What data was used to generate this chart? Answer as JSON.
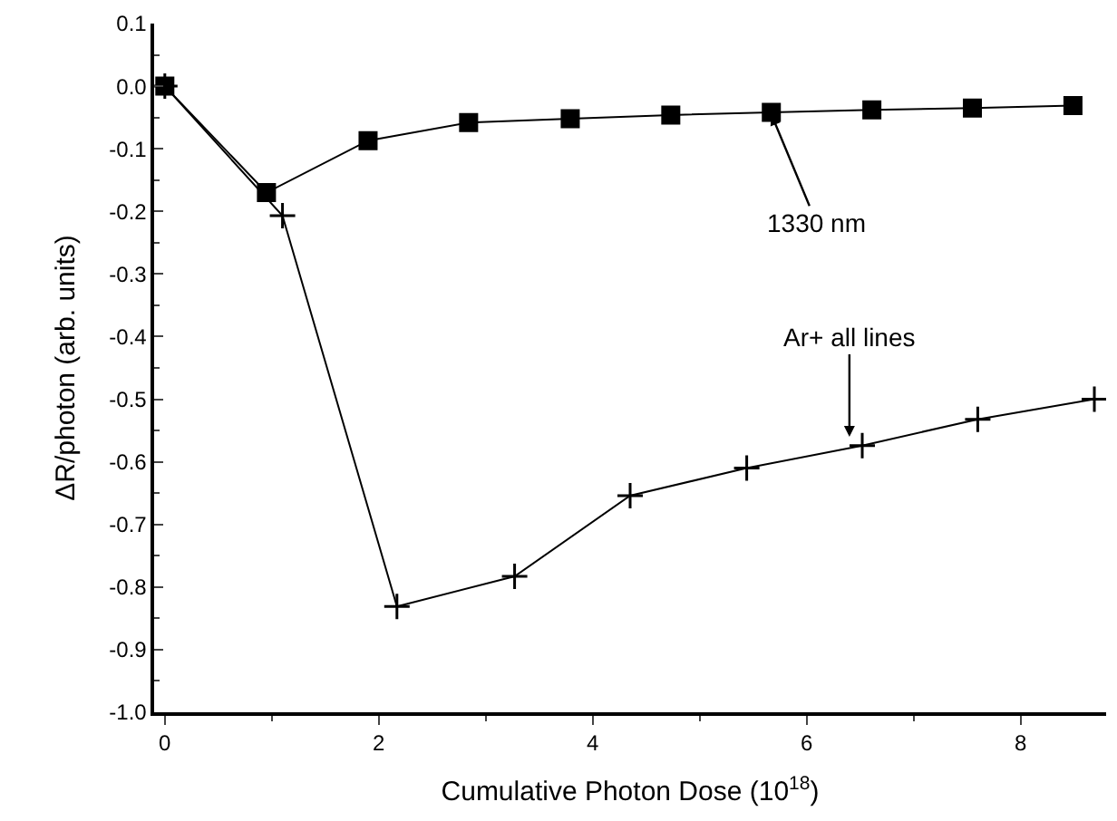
{
  "chart_data": {
    "type": "line",
    "xlabel": "Cumulative Photon Dose (10$^{18}$)",
    "ylabel": "ΔR/photon (arb. units)",
    "xlim": [
      -0.1,
      8.8
    ],
    "xticks": [
      0,
      2,
      4,
      6,
      8
    ],
    "ylim": [
      -1.0,
      0.1
    ],
    "yticks": [
      {
        "value": 0.1,
        "label": "0.1"
      },
      {
        "value": 0,
        "label": "0.0"
      },
      -0.1,
      -0.2,
      -0.3,
      -0.4,
      -0.5,
      -0.6,
      -0.7,
      -0.8,
      -0.9,
      {
        "value": -1.0,
        "label": "-1.0"
      }
    ],
    "series": [
      {
        "color": "#000000",
        "marker": "square",
        "x": [
          0,
          0.95,
          1.9,
          2.84,
          3.79,
          4.73,
          5.67,
          6.61,
          7.55,
          8.49
        ],
        "values": [
          0,
          -0.17,
          -0.087,
          -0.058,
          -0.052,
          -0.046,
          -0.042,
          -0.038,
          -0.035,
          -0.031
        ]
      },
      {
        "color": "#000000",
        "marker": "cross",
        "x": [
          0,
          1.1,
          2.17,
          3.27,
          4.35,
          5.44,
          6.52,
          7.6,
          8.69
        ],
        "values": [
          0,
          -0.207,
          -0.831,
          -0.783,
          -0.654,
          -0.61,
          -0.574,
          -0.532,
          -0.5
        ]
      }
    ],
    "annotations": [
      {
        "text": "1330 nm",
        "x": 5.67,
        "y": -0.045
      },
      {
        "text": "Ar+ all lines",
        "x": 6.4,
        "y": -0.56
      }
    ]
  }
}
